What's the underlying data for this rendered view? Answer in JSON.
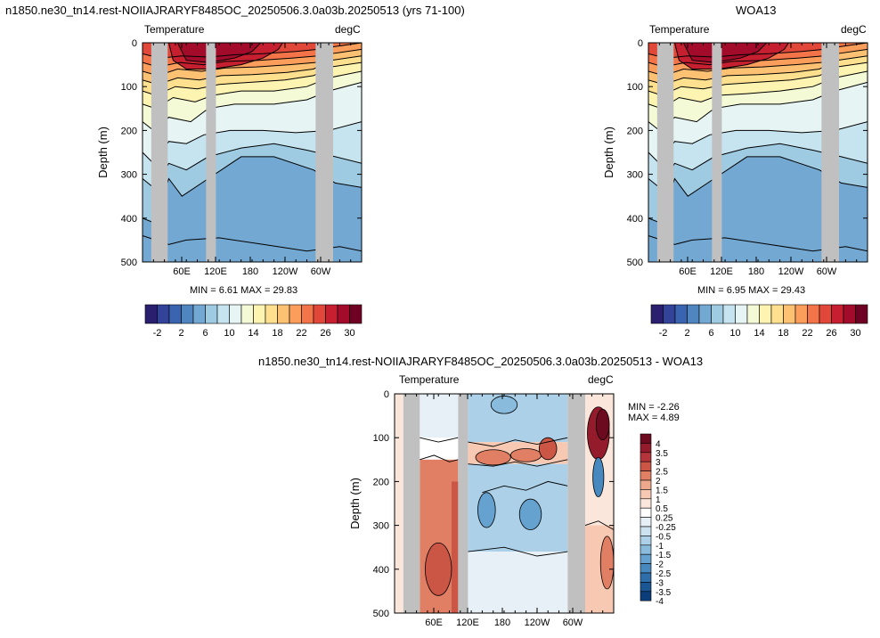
{
  "panel1": {
    "title": "n1850.ne30_tn14.rest-NOIIAJRARYF8485OC_20250506.3.0a03b.20250513 (yrs 71-100)",
    "left_label": "Temperature",
    "right_label": "degC",
    "ylabel": "Depth (m)",
    "stats": "MIN =   6.61  MAX =  29.83"
  },
  "panel2": {
    "title": "WOA13",
    "left_label": "Temperature",
    "right_label": "degC",
    "ylabel": "Depth (m)",
    "stats": "MIN =   6.95  MAX =  29.43"
  },
  "panel3": {
    "title": "n1850.ne30_tn14.rest-NOIIAJRARYF8485OC_20250506.3.0a03b.20250513 - WOA13",
    "left_label": "Temperature",
    "right_label": "degC",
    "ylabel": "Depth (m)",
    "stats_min": "MIN =  -2.26",
    "stats_max": "MAX =   4.89"
  },
  "colors": {
    "land": "#c0c0c0",
    "temp_palette": [
      "#2a1e6e",
      "#33439a",
      "#3b64b0",
      "#4f86c0",
      "#73a8d2",
      "#9ecbe2",
      "#c6e4ef",
      "#e6f4f3",
      "#f4fad6",
      "#fdf4b2",
      "#fee08e",
      "#fdc173",
      "#fb9e5b",
      "#f37448",
      "#e1483a",
      "#c51f30",
      "#a20b2a",
      "#6f0224"
    ],
    "diff_palette": [
      "#0b3d7a",
      "#1a5594",
      "#2e6fab",
      "#4789bf",
      "#66a2cf",
      "#89bbdd",
      "#abd0e7",
      "#cde2ef",
      "#e7f0f6",
      "#ffffff",
      "#fbe6dc",
      "#f7c9b3",
      "#eea88b",
      "#e07f64",
      "#cb5646",
      "#b3343a",
      "#941b2c",
      "#6c0a1f"
    ]
  },
  "chart_data": [
    {
      "type": "heatmap",
      "title": "n1850.ne30_tn14.rest-NOIIAJRARYF8485OC_20250506.3.0a03b.20250513 (yrs 71-100)",
      "ylabel": "Depth (m)",
      "ylim": [
        500,
        0
      ],
      "yticks": [
        "0",
        "100",
        "200",
        "300",
        "400",
        "500"
      ],
      "xticks": [
        "60E",
        "120E",
        "180",
        "120W",
        "60W"
      ],
      "colorbar_labels": [
        "-2",
        "2",
        "6",
        "10",
        "14",
        "18",
        "22",
        "26",
        "30"
      ],
      "min": 6.61,
      "max": 29.83
    },
    {
      "type": "heatmap",
      "title": "WOA13",
      "ylabel": "Depth (m)",
      "ylim": [
        500,
        0
      ],
      "yticks": [
        "0",
        "100",
        "200",
        "300",
        "400",
        "500"
      ],
      "xticks": [
        "60E",
        "120E",
        "180",
        "120W",
        "60W"
      ],
      "colorbar_labels": [
        "-2",
        "2",
        "6",
        "10",
        "14",
        "18",
        "22",
        "26",
        "30"
      ],
      "min": 6.95,
      "max": 29.43
    },
    {
      "type": "heatmap",
      "title": "n1850.ne30_tn14.rest-NOIIAJRARYF8485OC_20250506.3.0a03b.20250513 - WOA13",
      "ylabel": "Depth (m)",
      "ylim": [
        500,
        0
      ],
      "yticks": [
        "0",
        "100",
        "200",
        "300",
        "400",
        "500"
      ],
      "xticks": [
        "60E",
        "120E",
        "180",
        "120W",
        "60W"
      ],
      "colorbar_labels": [
        "4",
        "3.5",
        "3",
        "2.5",
        "2",
        "1.5",
        "1",
        "0.5",
        "0.25",
        "-0.25",
        "-0.5",
        "-1",
        "-1.5",
        "-2",
        "-2.5",
        "-3",
        "-3.5",
        "-4"
      ],
      "min": -2.26,
      "max": 4.89
    }
  ]
}
